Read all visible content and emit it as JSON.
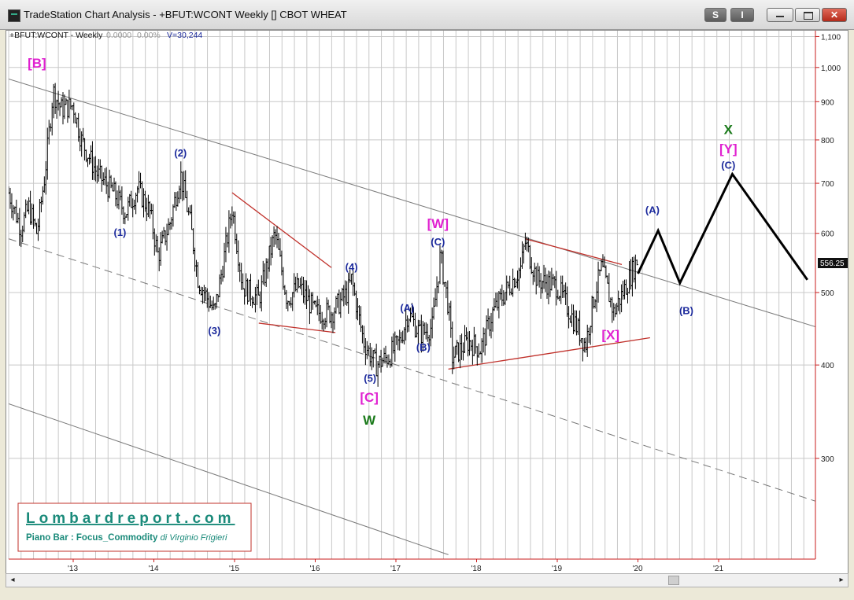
{
  "window": {
    "title": "TradeStation Chart Analysis - +BFUT:WCONT Weekly [] CBOT WHEAT",
    "btn_s": "S",
    "btn_i": "I",
    "scroll_left": "◂",
    "scroll_right": "▸"
  },
  "header": {
    "symbol": "+BFUT:WCONT - Weekly",
    "change": "0.0000",
    "pct": "0.00%",
    "volume": "V=30,244"
  },
  "price_flag": "556.25",
  "watermark": {
    "site": "Lombardreport.com",
    "line2_bold": "Piano Bar : Focus_Commodity",
    "line2_italic": "di Virginio Frigieri"
  },
  "colors": {
    "price_bars": "#000000",
    "wave_blue": "#1c2a9c",
    "wave_magenta": "#e020d0",
    "wave_green": "#1a7a1a",
    "trendline_red": "#c0302a",
    "channel_gray": "#7a7a7a",
    "axis_red": "#c81e1e",
    "projection": "#000000"
  },
  "chart_data": {
    "type": "bar",
    "title": "",
    "frequency": "weekly",
    "y_scale": "log",
    "ylim": [
      220,
      1120
    ],
    "grid": true,
    "y_ticks": [
      300,
      400,
      500,
      600,
      700,
      800,
      900,
      1000,
      1100
    ],
    "y_tick_labels": [
      "300",
      "400",
      "500",
      "600",
      "700",
      "800",
      "900",
      "1,000",
      "1,100"
    ],
    "x_ticks": [
      2013,
      2014,
      2015,
      2016,
      2017,
      2018,
      2019,
      2020,
      2021
    ],
    "x_tick_labels": [
      "'13",
      "'14",
      "'15",
      "'16",
      "'17",
      "'18",
      "'19",
      "'20",
      "'21"
    ],
    "xlim": [
      2012.2,
      2022.2
    ],
    "last_price": 556.25,
    "path_points": [
      {
        "x": 2012.2,
        "y": 680
      },
      {
        "x": 2012.35,
        "y": 610
      },
      {
        "x": 2012.45,
        "y": 650
      },
      {
        "x": 2012.55,
        "y": 600
      },
      {
        "x": 2012.65,
        "y": 720
      },
      {
        "x": 2012.75,
        "y": 930
      },
      {
        "x": 2012.85,
        "y": 880
      },
      {
        "x": 2013.0,
        "y": 890
      },
      {
        "x": 2013.1,
        "y": 800
      },
      {
        "x": 2013.3,
        "y": 720
      },
      {
        "x": 2013.5,
        "y": 680
      },
      {
        "x": 2013.65,
        "y": 640
      },
      {
        "x": 2013.8,
        "y": 690
      },
      {
        "x": 2013.95,
        "y": 640
      },
      {
        "x": 2014.05,
        "y": 560
      },
      {
        "x": 2014.2,
        "y": 620
      },
      {
        "x": 2014.33,
        "y": 720
      },
      {
        "x": 2014.45,
        "y": 620
      },
      {
        "x": 2014.55,
        "y": 520
      },
      {
        "x": 2014.75,
        "y": 470
      },
      {
        "x": 2014.85,
        "y": 540
      },
      {
        "x": 2014.97,
        "y": 650
      },
      {
        "x": 2015.1,
        "y": 510
      },
      {
        "x": 2015.3,
        "y": 490
      },
      {
        "x": 2015.5,
        "y": 600
      },
      {
        "x": 2015.65,
        "y": 490
      },
      {
        "x": 2015.8,
        "y": 510
      },
      {
        "x": 2016.0,
        "y": 470
      },
      {
        "x": 2016.2,
        "y": 470
      },
      {
        "x": 2016.4,
        "y": 500
      },
      {
        "x": 2016.45,
        "y": 520
      },
      {
        "x": 2016.6,
        "y": 430
      },
      {
        "x": 2016.75,
        "y": 400
      },
      {
        "x": 2016.9,
        "y": 410
      },
      {
        "x": 2017.05,
        "y": 430
      },
      {
        "x": 2017.15,
        "y": 470
      },
      {
        "x": 2017.3,
        "y": 440
      },
      {
        "x": 2017.45,
        "y": 450
      },
      {
        "x": 2017.55,
        "y": 560
      },
      {
        "x": 2017.65,
        "y": 480
      },
      {
        "x": 2017.7,
        "y": 410
      },
      {
        "x": 2017.9,
        "y": 430
      },
      {
        "x": 2018.05,
        "y": 420
      },
      {
        "x": 2018.2,
        "y": 470
      },
      {
        "x": 2018.35,
        "y": 500
      },
      {
        "x": 2018.55,
        "y": 540
      },
      {
        "x": 2018.6,
        "y": 585
      },
      {
        "x": 2018.75,
        "y": 520
      },
      {
        "x": 2019.0,
        "y": 510
      },
      {
        "x": 2019.2,
        "y": 460
      },
      {
        "x": 2019.35,
        "y": 425
      },
      {
        "x": 2019.45,
        "y": 490
      },
      {
        "x": 2019.55,
        "y": 540
      },
      {
        "x": 2019.7,
        "y": 470
      },
      {
        "x": 2019.85,
        "y": 510
      },
      {
        "x": 2020.0,
        "y": 556
      }
    ],
    "projection_path": [
      {
        "x": 2020.0,
        "y": 530
      },
      {
        "x": 2020.25,
        "y": 605
      },
      {
        "x": 2020.52,
        "y": 515
      },
      {
        "x": 2021.17,
        "y": 720
      },
      {
        "x": 2022.1,
        "y": 520
      }
    ],
    "wave_labels": [
      {
        "text": "[B]",
        "x": 2012.55,
        "y": 1000,
        "color": "magenta"
      },
      {
        "text": "(1)",
        "x": 2013.58,
        "y": 595,
        "color": "blue"
      },
      {
        "text": "(2)",
        "x": 2014.33,
        "y": 760,
        "color": "blue"
      },
      {
        "text": "(3)",
        "x": 2014.75,
        "y": 440,
        "color": "blue"
      },
      {
        "text": "(4)",
        "x": 2016.45,
        "y": 535,
        "color": "blue"
      },
      {
        "text": "(5)",
        "x": 2016.68,
        "y": 380,
        "color": "blue"
      },
      {
        "text": "[C]",
        "x": 2016.67,
        "y": 357,
        "color": "magenta"
      },
      {
        "text": "W",
        "x": 2016.67,
        "y": 333,
        "color": "green"
      },
      {
        "text": "(A)",
        "x": 2017.14,
        "y": 472,
        "color": "blue"
      },
      {
        "text": "(B)",
        "x": 2017.34,
        "y": 418,
        "color": "blue"
      },
      {
        "text": "[W]",
        "x": 2017.52,
        "y": 610,
        "color": "magenta"
      },
      {
        "text": "(C)",
        "x": 2017.52,
        "y": 578,
        "color": "blue"
      },
      {
        "text": "[X]",
        "x": 2019.66,
        "y": 433,
        "color": "magenta"
      },
      {
        "text": "(A)",
        "x": 2020.18,
        "y": 638,
        "color": "blue"
      },
      {
        "text": "(B)",
        "x": 2020.6,
        "y": 468,
        "color": "blue"
      },
      {
        "text": "X",
        "x": 2021.12,
        "y": 815,
        "color": "green"
      },
      {
        "text": "[Y]",
        "x": 2021.12,
        "y": 768,
        "color": "magenta"
      },
      {
        "text": "(C)",
        "x": 2021.12,
        "y": 732,
        "color": "blue"
      }
    ],
    "trendlines": [
      {
        "kind": "channel",
        "style": "solid",
        "points": [
          {
            "x": 2012.2,
            "y": 965
          },
          {
            "x": 2022.2,
            "y": 450
          }
        ]
      },
      {
        "kind": "channel",
        "style": "dashed",
        "points": [
          {
            "x": 2012.2,
            "y": 590
          },
          {
            "x": 2022.2,
            "y": 263
          }
        ]
      },
      {
        "kind": "channel",
        "style": "solid",
        "points": [
          {
            "x": 2012.2,
            "y": 355
          },
          {
            "x": 2017.65,
            "y": 223
          }
        ]
      },
      {
        "kind": "triangle",
        "style": "solid",
        "points": [
          {
            "x": 2014.97,
            "y": 680
          },
          {
            "x": 2016.2,
            "y": 540
          }
        ]
      },
      {
        "kind": "triangle",
        "style": "solid",
        "points": [
          {
            "x": 2015.3,
            "y": 455
          },
          {
            "x": 2016.25,
            "y": 442
          }
        ]
      },
      {
        "kind": "triangle",
        "style": "solid",
        "points": [
          {
            "x": 2017.65,
            "y": 395
          },
          {
            "x": 2020.15,
            "y": 435
          }
        ]
      },
      {
        "kind": "triangle",
        "style": "solid",
        "points": [
          {
            "x": 2018.6,
            "y": 590
          },
          {
            "x": 2019.8,
            "y": 545
          }
        ]
      }
    ]
  }
}
